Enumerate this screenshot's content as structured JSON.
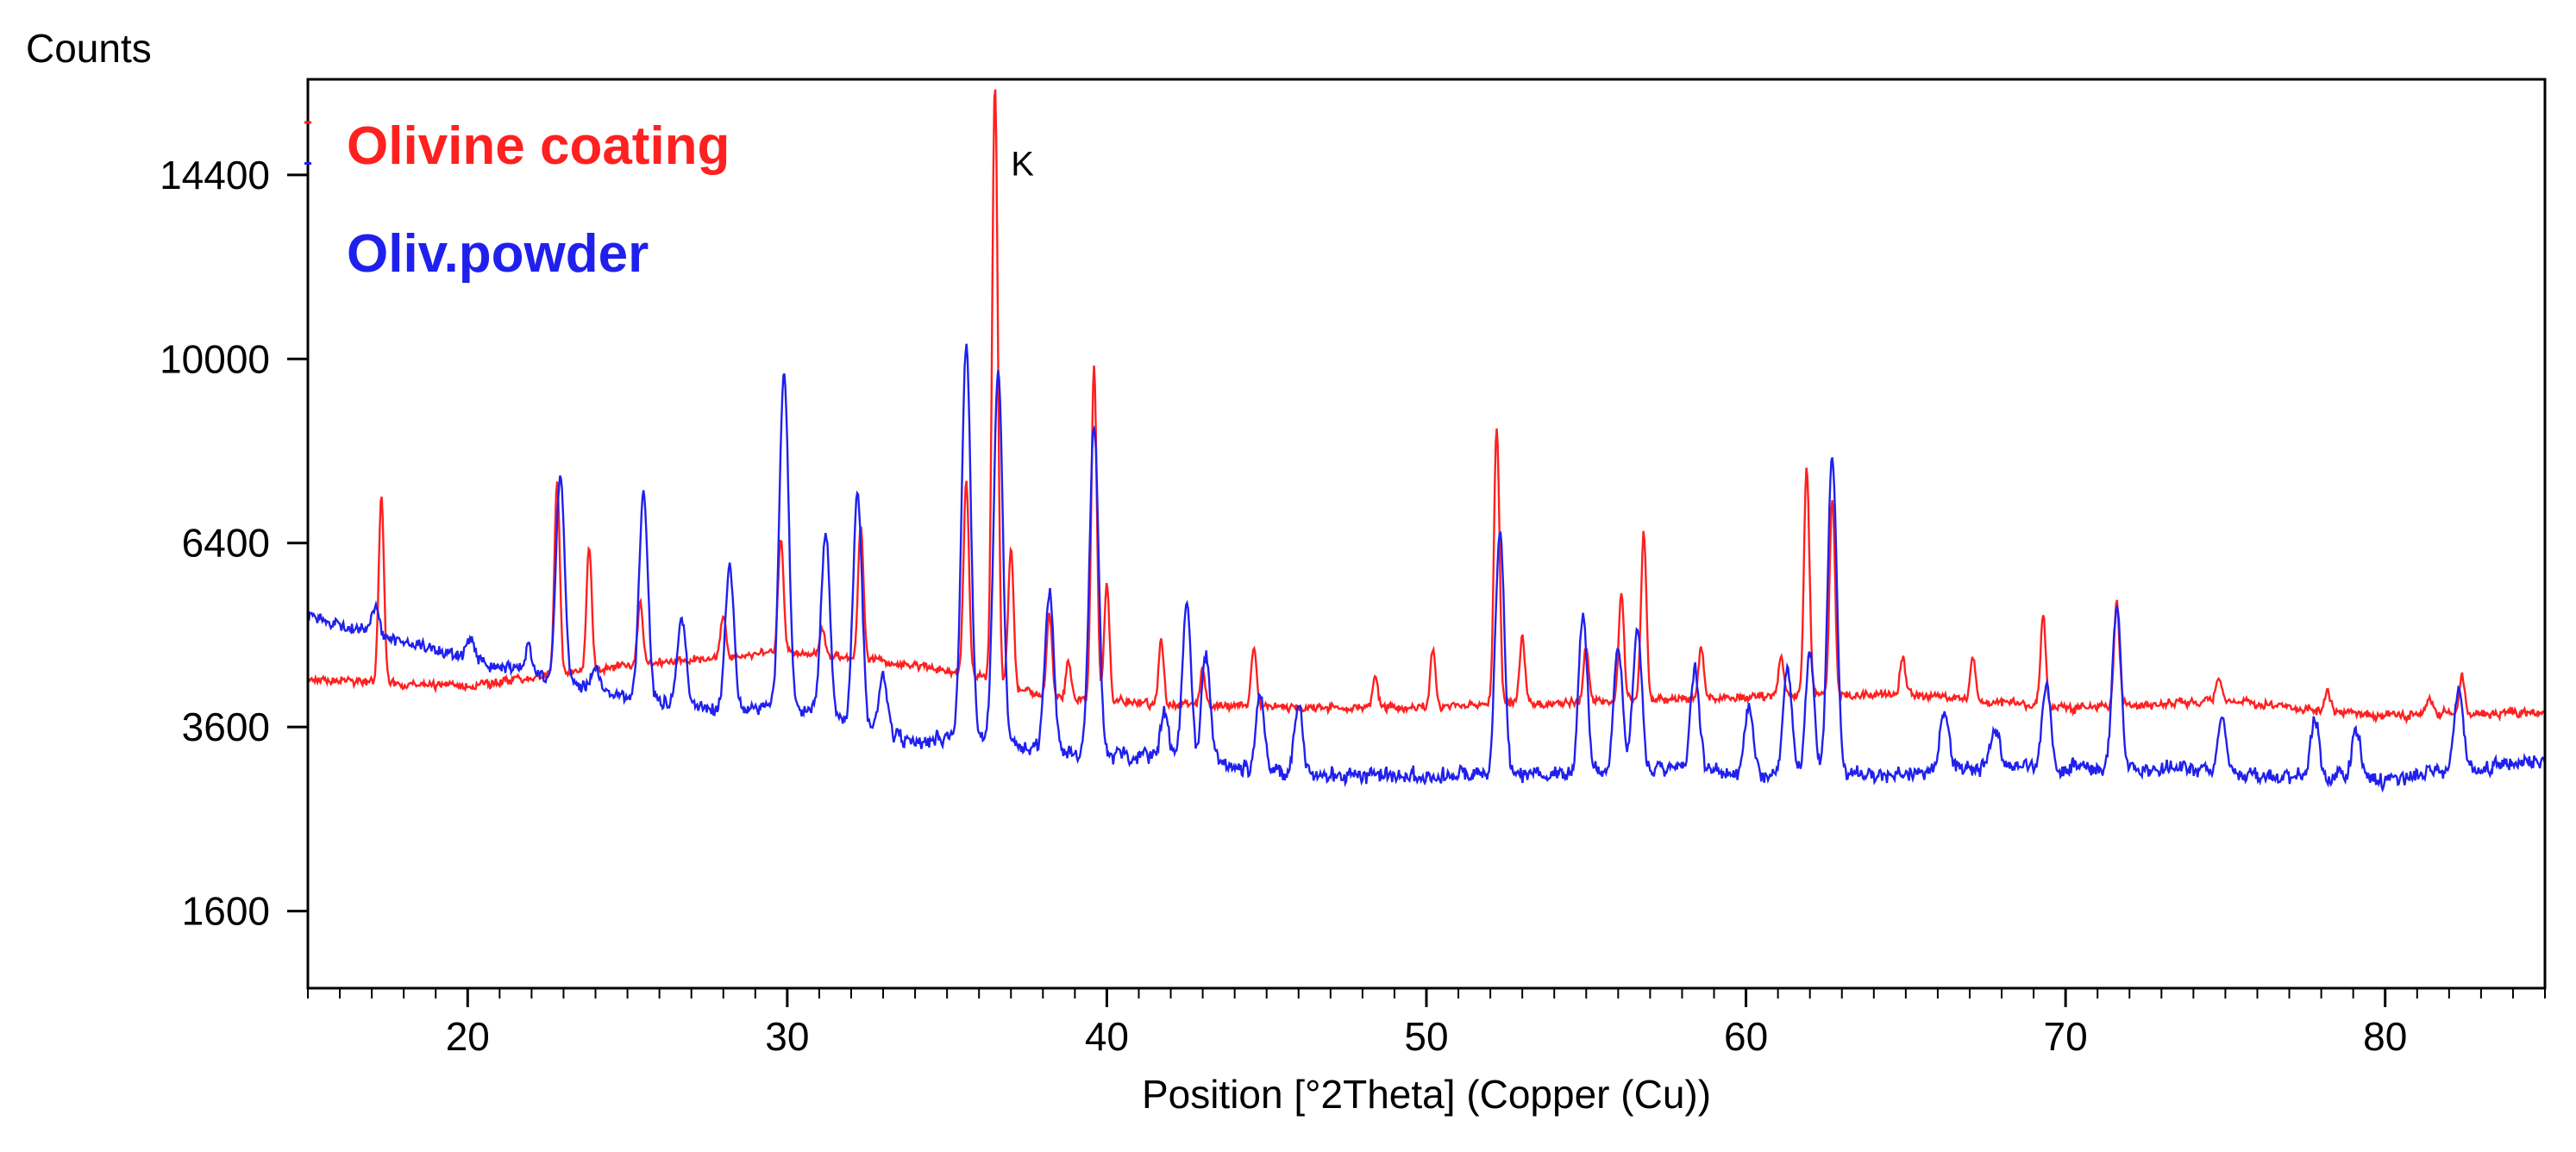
{
  "chart_data": {
    "type": "line",
    "title": "",
    "ylabel": "Counts",
    "xlabel": "Position [°2Theta] (Copper (Cu))",
    "y_scale": "sqrt",
    "xlim": [
      15,
      85
    ],
    "ylim": [
      1000,
      17000
    ],
    "x_ticks": [
      20,
      30,
      40,
      50,
      60,
      70,
      80
    ],
    "y_ticks": [
      1600,
      3600,
      6400,
      10000,
      14400
    ],
    "annotation": "K",
    "annotation_x": 37.0,
    "annotation_y": 14700,
    "series": [
      {
        "name": "Olivine coating",
        "color": "#ff2020",
        "baseline": [
          [
            15,
            4250
          ],
          [
            20,
            4150
          ],
          [
            25,
            4450
          ],
          [
            30,
            4650
          ],
          [
            34,
            4450
          ],
          [
            36,
            4300
          ],
          [
            38,
            4000
          ],
          [
            42,
            3900
          ],
          [
            48,
            3850
          ],
          [
            52,
            3900
          ],
          [
            60,
            4000
          ],
          [
            65,
            4050
          ],
          [
            70,
            3850
          ],
          [
            75,
            3950
          ],
          [
            80,
            3750
          ],
          [
            85,
            3800
          ]
        ],
        "peaks": [
          {
            "x": 17.3,
            "y": 7200
          },
          {
            "x": 22.8,
            "y": 7500
          },
          {
            "x": 23.8,
            "y": 6300
          },
          {
            "x": 25.4,
            "y": 5400
          },
          {
            "x": 28.0,
            "y": 5200
          },
          {
            "x": 29.8,
            "y": 6500
          },
          {
            "x": 31.1,
            "y": 5000
          },
          {
            "x": 32.3,
            "y": 6700
          },
          {
            "x": 35.6,
            "y": 7500
          },
          {
            "x": 36.5,
            "y": 16800
          },
          {
            "x": 37.0,
            "y": 6300
          },
          {
            "x": 38.2,
            "y": 5200
          },
          {
            "x": 38.8,
            "y": 4500
          },
          {
            "x": 39.6,
            "y": 9800
          },
          {
            "x": 40.0,
            "y": 5700
          },
          {
            "x": 41.7,
            "y": 4800
          },
          {
            "x": 43.0,
            "y": 4400
          },
          {
            "x": 44.6,
            "y": 4700
          },
          {
            "x": 48.4,
            "y": 4300
          },
          {
            "x": 50.2,
            "y": 4700
          },
          {
            "x": 52.2,
            "y": 8600
          },
          {
            "x": 53.0,
            "y": 4900
          },
          {
            "x": 55.0,
            "y": 4700
          },
          {
            "x": 56.1,
            "y": 5600
          },
          {
            "x": 56.8,
            "y": 6600
          },
          {
            "x": 58.6,
            "y": 4700
          },
          {
            "x": 61.1,
            "y": 4600
          },
          {
            "x": 61.9,
            "y": 7800
          },
          {
            "x": 62.7,
            "y": 7200
          },
          {
            "x": 64.9,
            "y": 4600
          },
          {
            "x": 67.1,
            "y": 4600
          },
          {
            "x": 69.3,
            "y": 5200
          },
          {
            "x": 71.6,
            "y": 5400
          },
          {
            "x": 74.8,
            "y": 4300
          },
          {
            "x": 78.2,
            "y": 4100
          },
          {
            "x": 81.4,
            "y": 4000
          },
          {
            "x": 82.4,
            "y": 4300
          }
        ]
      },
      {
        "name": "Oliv.powder",
        "color": "#2020ee",
        "baseline": [
          [
            15,
            5200
          ],
          [
            18,
            4800
          ],
          [
            22,
            4300
          ],
          [
            25,
            4000
          ],
          [
            28,
            3800
          ],
          [
            30,
            3900
          ],
          [
            34,
            3400
          ],
          [
            36,
            3500
          ],
          [
            38,
            3300
          ],
          [
            42,
            3200
          ],
          [
            46,
            3000
          ],
          [
            50,
            3000
          ],
          [
            54,
            3000
          ],
          [
            58,
            3100
          ],
          [
            60,
            3000
          ],
          [
            64,
            3000
          ],
          [
            68,
            3100
          ],
          [
            72,
            3100
          ],
          [
            76,
            3000
          ],
          [
            80,
            2950
          ],
          [
            85,
            3200
          ]
        ],
        "peaks": [
          {
            "x": 17.1,
            "y": 5300
          },
          {
            "x": 20.1,
            "y": 4800
          },
          {
            "x": 21.9,
            "y": 4700
          },
          {
            "x": 22.9,
            "y": 7600
          },
          {
            "x": 24.0,
            "y": 4400
          },
          {
            "x": 25.5,
            "y": 7300
          },
          {
            "x": 26.7,
            "y": 5200
          },
          {
            "x": 28.2,
            "y": 6000
          },
          {
            "x": 29.9,
            "y": 9700
          },
          {
            "x": 31.2,
            "y": 6600
          },
          {
            "x": 32.2,
            "y": 7300
          },
          {
            "x": 33.0,
            "y": 4300
          },
          {
            "x": 35.6,
            "y": 10300
          },
          {
            "x": 36.6,
            "y": 9700
          },
          {
            "x": 38.2,
            "y": 5600
          },
          {
            "x": 39.6,
            "y": 8600
          },
          {
            "x": 41.8,
            "y": 3800
          },
          {
            "x": 42.5,
            "y": 5400
          },
          {
            "x": 43.1,
            "y": 4600
          },
          {
            "x": 44.8,
            "y": 4000
          },
          {
            "x": 46.0,
            "y": 3900
          },
          {
            "x": 52.3,
            "y": 6600
          },
          {
            "x": 54.9,
            "y": 5200
          },
          {
            "x": 56.0,
            "y": 4700
          },
          {
            "x": 56.6,
            "y": 5000
          },
          {
            "x": 58.4,
            "y": 4400
          },
          {
            "x": 60.1,
            "y": 3900
          },
          {
            "x": 61.3,
            "y": 4400
          },
          {
            "x": 62.0,
            "y": 4600
          },
          {
            "x": 62.7,
            "y": 8000
          },
          {
            "x": 66.2,
            "y": 3800
          },
          {
            "x": 67.8,
            "y": 3600
          },
          {
            "x": 69.4,
            "y": 4200
          },
          {
            "x": 71.6,
            "y": 5300
          },
          {
            "x": 74.9,
            "y": 3700
          },
          {
            "x": 77.8,
            "y": 3700
          },
          {
            "x": 79.1,
            "y": 3600
          },
          {
            "x": 82.3,
            "y": 4100
          }
        ]
      }
    ]
  }
}
